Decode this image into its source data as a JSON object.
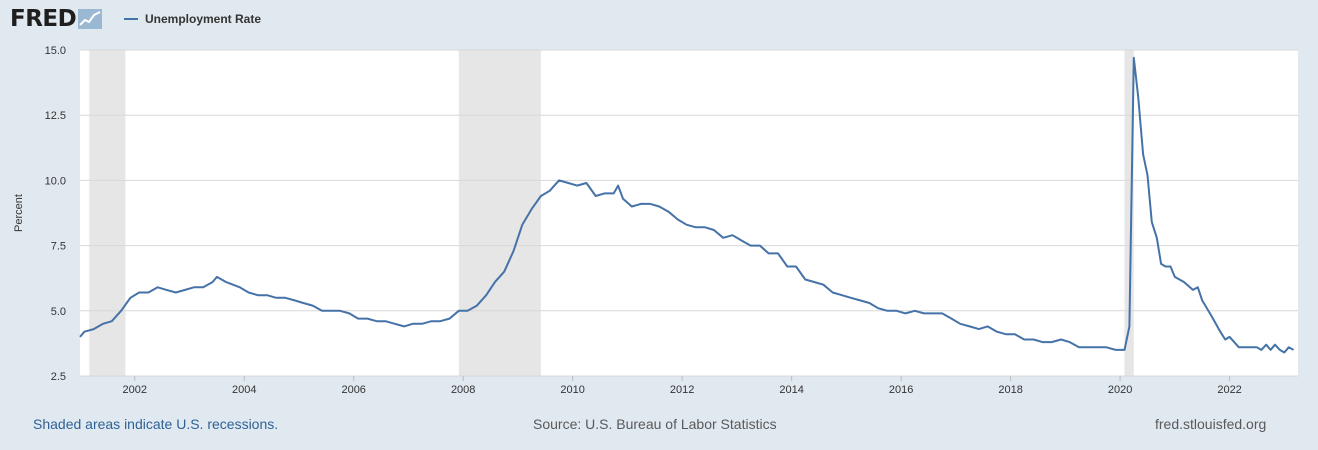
{
  "header": {
    "logo_text": "FRED",
    "logo_icon": "line-graph-icon"
  },
  "footer": {
    "recession_note": "Shaded areas indicate U.S. recessions.",
    "source": "Source: U.S. Bureau of Labor Statistics",
    "site": "fred.stlouisfed.org"
  },
  "chart_data": {
    "type": "line",
    "title": "",
    "xlabel": "",
    "ylabel": "Percent",
    "xlim": [
      2001.0,
      2023.25
    ],
    "ylim": [
      2.5,
      15.0
    ],
    "yticks": [
      "2.5",
      "5.0",
      "7.5",
      "10.0",
      "12.5",
      "15.0"
    ],
    "xticks": [
      "2002",
      "2004",
      "2006",
      "2008",
      "2010",
      "2012",
      "2014",
      "2016",
      "2018",
      "2020",
      "2022"
    ],
    "grid": true,
    "legend_position": "top-left",
    "series_color": "#4572a7",
    "recession_color": "#e6e6e6",
    "recessions": [
      {
        "start": 2001.17,
        "end": 2001.83
      },
      {
        "start": 2007.92,
        "end": 2009.42
      },
      {
        "start": 2020.08,
        "end": 2020.25
      }
    ],
    "series": [
      {
        "name": "Unemployment Rate",
        "points": [
          [
            2001.0,
            4.0
          ],
          [
            2001.08,
            4.2
          ],
          [
            2001.25,
            4.3
          ],
          [
            2001.42,
            4.5
          ],
          [
            2001.58,
            4.6
          ],
          [
            2001.75,
            5.0
          ],
          [
            2001.92,
            5.5
          ],
          [
            2002.08,
            5.7
          ],
          [
            2002.25,
            5.7
          ],
          [
            2002.42,
            5.9
          ],
          [
            2002.58,
            5.8
          ],
          [
            2002.75,
            5.7
          ],
          [
            2002.92,
            5.8
          ],
          [
            2003.08,
            5.9
          ],
          [
            2003.25,
            5.9
          ],
          [
            2003.42,
            6.1
          ],
          [
            2003.5,
            6.3
          ],
          [
            2003.67,
            6.1
          ],
          [
            2003.92,
            5.9
          ],
          [
            2004.08,
            5.7
          ],
          [
            2004.25,
            5.6
          ],
          [
            2004.42,
            5.6
          ],
          [
            2004.58,
            5.5
          ],
          [
            2004.75,
            5.5
          ],
          [
            2004.92,
            5.4
          ],
          [
            2005.08,
            5.3
          ],
          [
            2005.25,
            5.2
          ],
          [
            2005.42,
            5.0
          ],
          [
            2005.58,
            5.0
          ],
          [
            2005.75,
            5.0
          ],
          [
            2005.92,
            4.9
          ],
          [
            2006.08,
            4.7
          ],
          [
            2006.25,
            4.7
          ],
          [
            2006.42,
            4.6
          ],
          [
            2006.58,
            4.6
          ],
          [
            2006.75,
            4.5
          ],
          [
            2006.92,
            4.4
          ],
          [
            2007.08,
            4.5
          ],
          [
            2007.25,
            4.5
          ],
          [
            2007.42,
            4.6
          ],
          [
            2007.58,
            4.6
          ],
          [
            2007.75,
            4.7
          ],
          [
            2007.92,
            5.0
          ],
          [
            2008.08,
            5.0
          ],
          [
            2008.25,
            5.2
          ],
          [
            2008.42,
            5.6
          ],
          [
            2008.58,
            6.1
          ],
          [
            2008.75,
            6.5
          ],
          [
            2008.92,
            7.3
          ],
          [
            2009.08,
            8.3
          ],
          [
            2009.25,
            8.9
          ],
          [
            2009.42,
            9.4
          ],
          [
            2009.58,
            9.6
          ],
          [
            2009.75,
            10.0
          ],
          [
            2009.92,
            9.9
          ],
          [
            2010.08,
            9.8
          ],
          [
            2010.25,
            9.9
          ],
          [
            2010.42,
            9.4
          ],
          [
            2010.58,
            9.5
          ],
          [
            2010.75,
            9.5
          ],
          [
            2010.83,
            9.8
          ],
          [
            2010.92,
            9.3
          ],
          [
            2011.08,
            9.0
          ],
          [
            2011.25,
            9.1
          ],
          [
            2011.42,
            9.1
          ],
          [
            2011.58,
            9.0
          ],
          [
            2011.75,
            8.8
          ],
          [
            2011.92,
            8.5
          ],
          [
            2012.08,
            8.3
          ],
          [
            2012.25,
            8.2
          ],
          [
            2012.42,
            8.2
          ],
          [
            2012.58,
            8.1
          ],
          [
            2012.75,
            7.8
          ],
          [
            2012.92,
            7.9
          ],
          [
            2013.08,
            7.7
          ],
          [
            2013.25,
            7.5
          ],
          [
            2013.42,
            7.5
          ],
          [
            2013.58,
            7.2
          ],
          [
            2013.75,
            7.2
          ],
          [
            2013.92,
            6.7
          ],
          [
            2014.08,
            6.7
          ],
          [
            2014.25,
            6.2
          ],
          [
            2014.42,
            6.1
          ],
          [
            2014.58,
            6.0
          ],
          [
            2014.75,
            5.7
          ],
          [
            2014.92,
            5.6
          ],
          [
            2015.08,
            5.5
          ],
          [
            2015.25,
            5.4
          ],
          [
            2015.42,
            5.3
          ],
          [
            2015.58,
            5.1
          ],
          [
            2015.75,
            5.0
          ],
          [
            2015.92,
            5.0
          ],
          [
            2016.08,
            4.9
          ],
          [
            2016.25,
            5.0
          ],
          [
            2016.42,
            4.9
          ],
          [
            2016.58,
            4.9
          ],
          [
            2016.75,
            4.9
          ],
          [
            2016.92,
            4.7
          ],
          [
            2017.08,
            4.5
          ],
          [
            2017.25,
            4.4
          ],
          [
            2017.42,
            4.3
          ],
          [
            2017.58,
            4.4
          ],
          [
            2017.75,
            4.2
          ],
          [
            2017.92,
            4.1
          ],
          [
            2018.08,
            4.1
          ],
          [
            2018.25,
            3.9
          ],
          [
            2018.42,
            3.9
          ],
          [
            2018.58,
            3.8
          ],
          [
            2018.75,
            3.8
          ],
          [
            2018.92,
            3.9
          ],
          [
            2019.08,
            3.8
          ],
          [
            2019.25,
            3.6
          ],
          [
            2019.42,
            3.6
          ],
          [
            2019.58,
            3.6
          ],
          [
            2019.75,
            3.6
          ],
          [
            2019.92,
            3.5
          ],
          [
            2020.0,
            3.5
          ],
          [
            2020.08,
            3.5
          ],
          [
            2020.17,
            4.4
          ],
          [
            2020.25,
            14.7
          ],
          [
            2020.33,
            13.2
          ],
          [
            2020.42,
            11.0
          ],
          [
            2020.5,
            10.2
          ],
          [
            2020.58,
            8.4
          ],
          [
            2020.67,
            7.8
          ],
          [
            2020.75,
            6.8
          ],
          [
            2020.83,
            6.7
          ],
          [
            2020.92,
            6.7
          ],
          [
            2021.0,
            6.3
          ],
          [
            2021.17,
            6.1
          ],
          [
            2021.33,
            5.8
          ],
          [
            2021.42,
            5.9
          ],
          [
            2021.5,
            5.4
          ],
          [
            2021.67,
            4.8
          ],
          [
            2021.83,
            4.2
          ],
          [
            2021.92,
            3.9
          ],
          [
            2022.0,
            4.0
          ],
          [
            2022.17,
            3.6
          ],
          [
            2022.33,
            3.6
          ],
          [
            2022.5,
            3.6
          ],
          [
            2022.58,
            3.5
          ],
          [
            2022.67,
            3.7
          ],
          [
            2022.75,
            3.5
          ],
          [
            2022.83,
            3.7
          ],
          [
            2022.92,
            3.5
          ],
          [
            2023.0,
            3.4
          ],
          [
            2023.08,
            3.6
          ],
          [
            2023.17,
            3.5
          ]
        ]
      }
    ]
  }
}
